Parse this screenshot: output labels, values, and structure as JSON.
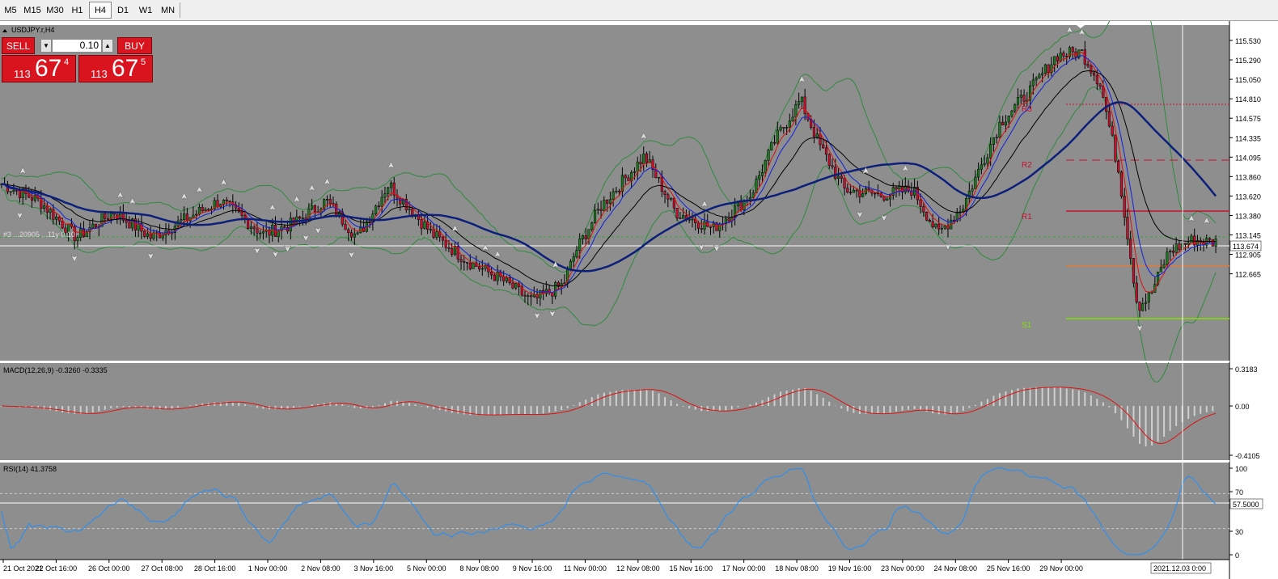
{
  "timeframes": [
    {
      "label": "M5",
      "active": false
    },
    {
      "label": "M15",
      "active": false
    },
    {
      "label": "M30",
      "active": false
    },
    {
      "label": "H1",
      "active": false
    },
    {
      "label": "H4",
      "active": true
    },
    {
      "label": "D1",
      "active": false
    },
    {
      "label": "W1",
      "active": false
    },
    {
      "label": "MN",
      "active": false
    }
  ],
  "chart_title": "USDJPY.r,H4",
  "trade_panel": {
    "sell_label": "SELL",
    "buy_label": "BUY",
    "lot": "0.10",
    "bid_big": "113",
    "bid_main": "67",
    "bid_small": "4",
    "ask_big": "113",
    "ask_main": "67",
    "ask_small": "5"
  },
  "colors": {
    "background": "#8e8e8e",
    "bull": "#1f7a1f",
    "bear": "#c8102e",
    "ma_slow": "#0c1f7a"
  },
  "price_axis": {
    "labels": [
      "115.530",
      "115.290",
      "115.050",
      "114.810",
      "114.575",
      "114.335",
      "114.095",
      "113.860",
      "113.620",
      "113.380",
      "113.145",
      "112.905",
      "112.665"
    ],
    "current_price": "113.674",
    "range": [
      112.62,
      115.62
    ]
  },
  "pivot_labels": {
    "r3": "R3",
    "r2": "R2",
    "r1": "R1",
    "s1": "S1"
  },
  "object_label": "#3 ...20905 ...11y 0.10",
  "macd": {
    "title": "MACD(12,26,9) -0.3260 -0.3335",
    "labels": [
      "0.3183",
      "0.00",
      "-0.4105"
    ]
  },
  "rsi": {
    "title": "RSI(14) 41.3758",
    "labels": [
      "100",
      "70",
      "30",
      "0"
    ],
    "current": "57.5000"
  },
  "time_axis": {
    "labels": [
      "21 Oct 2021",
      "22 Oct 16:00",
      "26 Oct 00:00",
      "27 Oct 08:00",
      "28 Oct 16:00",
      "1 Nov 00:00",
      "2 Nov 08:00",
      "3 Nov 16:00",
      "5 Nov 00:00",
      "8 Nov 08:00",
      "9 Nov 16:00",
      "11 Nov 00:00",
      "12 Nov 08:00",
      "15 Nov 16:00",
      "17 Nov 00:00",
      "18 Nov 08:00",
      "19 Nov 16:00",
      "23 Nov 00:00",
      "24 Nov 08:00",
      "25 Nov 16:00",
      "29 Nov 00:00"
    ],
    "crosshair_time": "2021.12.03 0:00"
  },
  "chart_data": {
    "type": "candlestick",
    "price_keypoints": [
      [
        0,
        114.2
      ],
      [
        12,
        114.05
      ],
      [
        24,
        113.72
      ],
      [
        36,
        113.95
      ],
      [
        48,
        113.72
      ],
      [
        60,
        113.9
      ],
      [
        70,
        114.05
      ],
      [
        84,
        113.75
      ],
      [
        94,
        113.85
      ],
      [
        104,
        114.05
      ],
      [
        114,
        113.72
      ],
      [
        124,
        114.2
      ],
      [
        138,
        113.75
      ],
      [
        150,
        113.5
      ],
      [
        160,
        113.35
      ],
      [
        170,
        113.15
      ],
      [
        180,
        113.3
      ],
      [
        184,
        113.6
      ],
      [
        192,
        114.0
      ],
      [
        206,
        114.45
      ],
      [
        216,
        113.95
      ],
      [
        228,
        113.8
      ],
      [
        240,
        114.1
      ],
      [
        248,
        114.6
      ],
      [
        256,
        114.95
      ],
      [
        262,
        114.55
      ],
      [
        270,
        114.15
      ],
      [
        282,
        114.1
      ],
      [
        292,
        114.15
      ],
      [
        300,
        113.75
      ],
      [
        308,
        114.0
      ],
      [
        320,
        114.75
      ],
      [
        330,
        115.05
      ],
      [
        338,
        115.35
      ],
      [
        346,
        115.38
      ],
      [
        352,
        115.1
      ],
      [
        358,
        114.3
      ],
      [
        364,
        113.1
      ],
      [
        368,
        113.2
      ],
      [
        374,
        113.6
      ],
      [
        382,
        113.7
      ],
      [
        386,
        113.68
      ]
    ]
  }
}
